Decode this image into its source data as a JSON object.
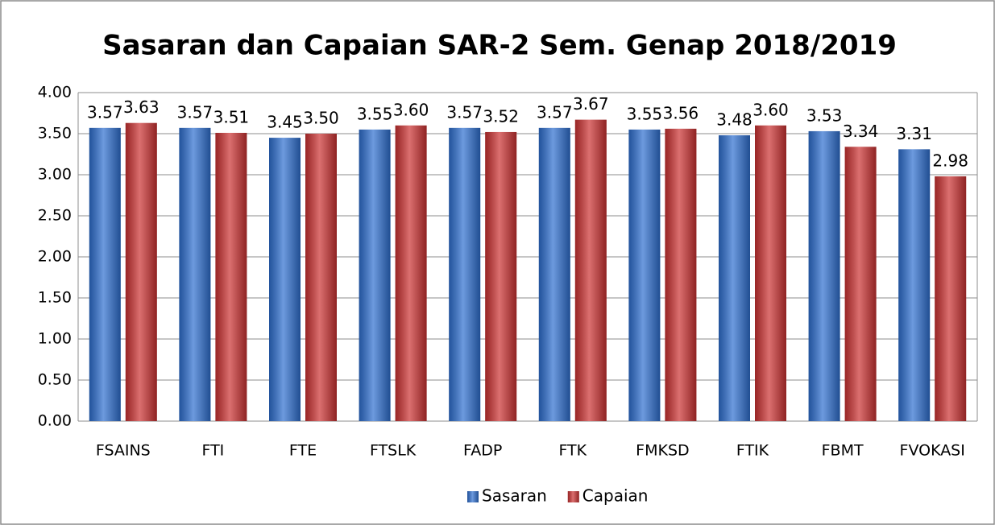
{
  "chart_data": {
    "type": "bar",
    "title": "Sasaran dan Capaian SAR-2 Sem. Genap 2018/2019",
    "categories": [
      "FSAINS",
      "FTI",
      "FTE",
      "FTSLK",
      "FADP",
      "FTK",
      "FMKSD",
      "FTIK",
      "FBMT",
      "FVOKASI"
    ],
    "series": [
      {
        "name": "Sasaran",
        "color": "#2e6fd0",
        "values": [
          3.57,
          3.57,
          3.45,
          3.55,
          3.57,
          3.57,
          3.55,
          3.48,
          3.53,
          3.31
        ],
        "value_labels": [
          "3.57",
          "3.57",
          "3.45",
          "3.55",
          "3.57",
          "3.57",
          "3.55",
          "3.48",
          "3.53",
          "3.31"
        ]
      },
      {
        "name": "Capaian",
        "color": "#cc3232",
        "values": [
          3.63,
          3.51,
          3.5,
          3.6,
          3.52,
          3.67,
          3.56,
          3.6,
          3.34,
          2.98
        ],
        "value_labels": [
          "3.63",
          "3.51",
          "3.50",
          "3.60",
          "3.52",
          "3.67",
          "3.56",
          "3.60",
          "3.34",
          "2.98"
        ]
      }
    ],
    "ylim": [
      0,
      4
    ],
    "yticks": [
      {
        "value": 0,
        "label": "0.00"
      },
      {
        "value": 0.5,
        "label": "0.50"
      },
      {
        "value": 1,
        "label": "1.00"
      },
      {
        "value": 1.5,
        "label": "1.50"
      },
      {
        "value": 2,
        "label": "2.00"
      },
      {
        "value": 2.5,
        "label": "2.50"
      },
      {
        "value": 3,
        "label": "3.00"
      },
      {
        "value": 3.5,
        "label": "3.50"
      },
      {
        "value": 4,
        "label": "4.00"
      }
    ],
    "grid": true,
    "legend": "bottom"
  }
}
